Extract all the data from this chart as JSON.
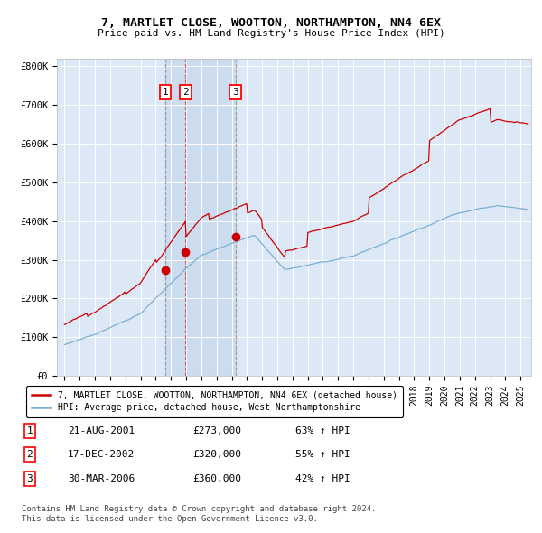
{
  "title": "7, MARTLET CLOSE, WOOTTON, NORTHAMPTON, NN4 6EX",
  "subtitle": "Price paid vs. HM Land Registry's House Price Index (HPI)",
  "plot_bg_color": "#dce8f5",
  "hpi_color": "#7bafd4",
  "price_color": "#cc0000",
  "vline1_x": 2001.64,
  "vline2_x": 2002.96,
  "vline3_x": 2006.24,
  "sale1": {
    "year": 2001.64,
    "price": 273000
  },
  "sale2": {
    "year": 2002.96,
    "price": 320000
  },
  "sale3": {
    "year": 2006.24,
    "price": 360000
  },
  "ylim": [
    0,
    820000
  ],
  "xlim": [
    1994.5,
    2025.7
  ],
  "yticks": [
    0,
    100000,
    200000,
    300000,
    400000,
    500000,
    600000,
    700000,
    800000
  ],
  "ytick_labels": [
    "£0",
    "£100K",
    "£200K",
    "£300K",
    "£400K",
    "£500K",
    "£600K",
    "£700K",
    "£800K"
  ],
  "legend_line1": "7, MARTLET CLOSE, WOOTTON, NORTHAMPTON, NN4 6EX (detached house)",
  "legend_line2": "HPI: Average price, detached house, West Northamptonshire",
  "table_rows": [
    {
      "num": "1",
      "date": "21-AUG-2001",
      "price": "£273,000",
      "pct": "63% ↑ HPI"
    },
    {
      "num": "2",
      "date": "17-DEC-2002",
      "price": "£320,000",
      "pct": "55% ↑ HPI"
    },
    {
      "num": "3",
      "date": "30-MAR-2006",
      "price": "£360,000",
      "pct": "42% ↑ HPI"
    }
  ],
  "footer": "Contains HM Land Registry data © Crown copyright and database right 2024.\nThis data is licensed under the Open Government Licence v3.0."
}
